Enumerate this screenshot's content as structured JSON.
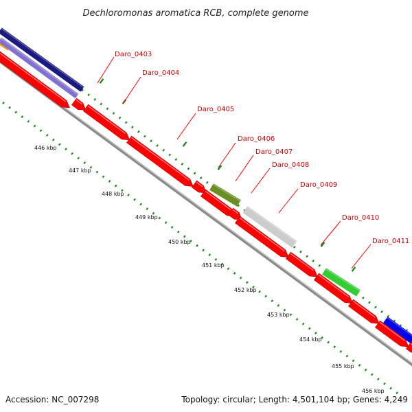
{
  "title": "Dechloromonas aromatica RCB, complete genome",
  "footer": {
    "accession": "Accession: NC_007298",
    "summary": "Topology: circular; Length: 4,501,104 bp; Genes: 4,249"
  },
  "colors": {
    "cds": "#ff0000",
    "backbone": "#888888",
    "tick": "#1a8a1a",
    "label": "#cc0000",
    "leader": "#ff0000"
  },
  "gene_labels": [
    "Daro_0403",
    "Daro_0404",
    "Daro_0405",
    "Daro_0406",
    "Daro_0407",
    "Daro_0408",
    "Daro_0409",
    "Daro_0410",
    "Daro_0411"
  ],
  "tick_labels": [
    "446 kbp",
    "447 kbp",
    "448 kbp",
    "449 kbp",
    "450 kbp",
    "451 kbp",
    "452 kbp",
    "453 kbp",
    "454 kbp",
    "455 kbp",
    "456 kbp"
  ],
  "feature_bands": [
    {
      "color": "#ff9900"
    },
    {
      "color": "#1a1a80"
    },
    {
      "color": "#8070d0"
    },
    {
      "color": "#6b8e23"
    },
    {
      "color": "#cccccc"
    },
    {
      "color": "#33cc33"
    },
    {
      "color": "#0000ee"
    }
  ]
}
